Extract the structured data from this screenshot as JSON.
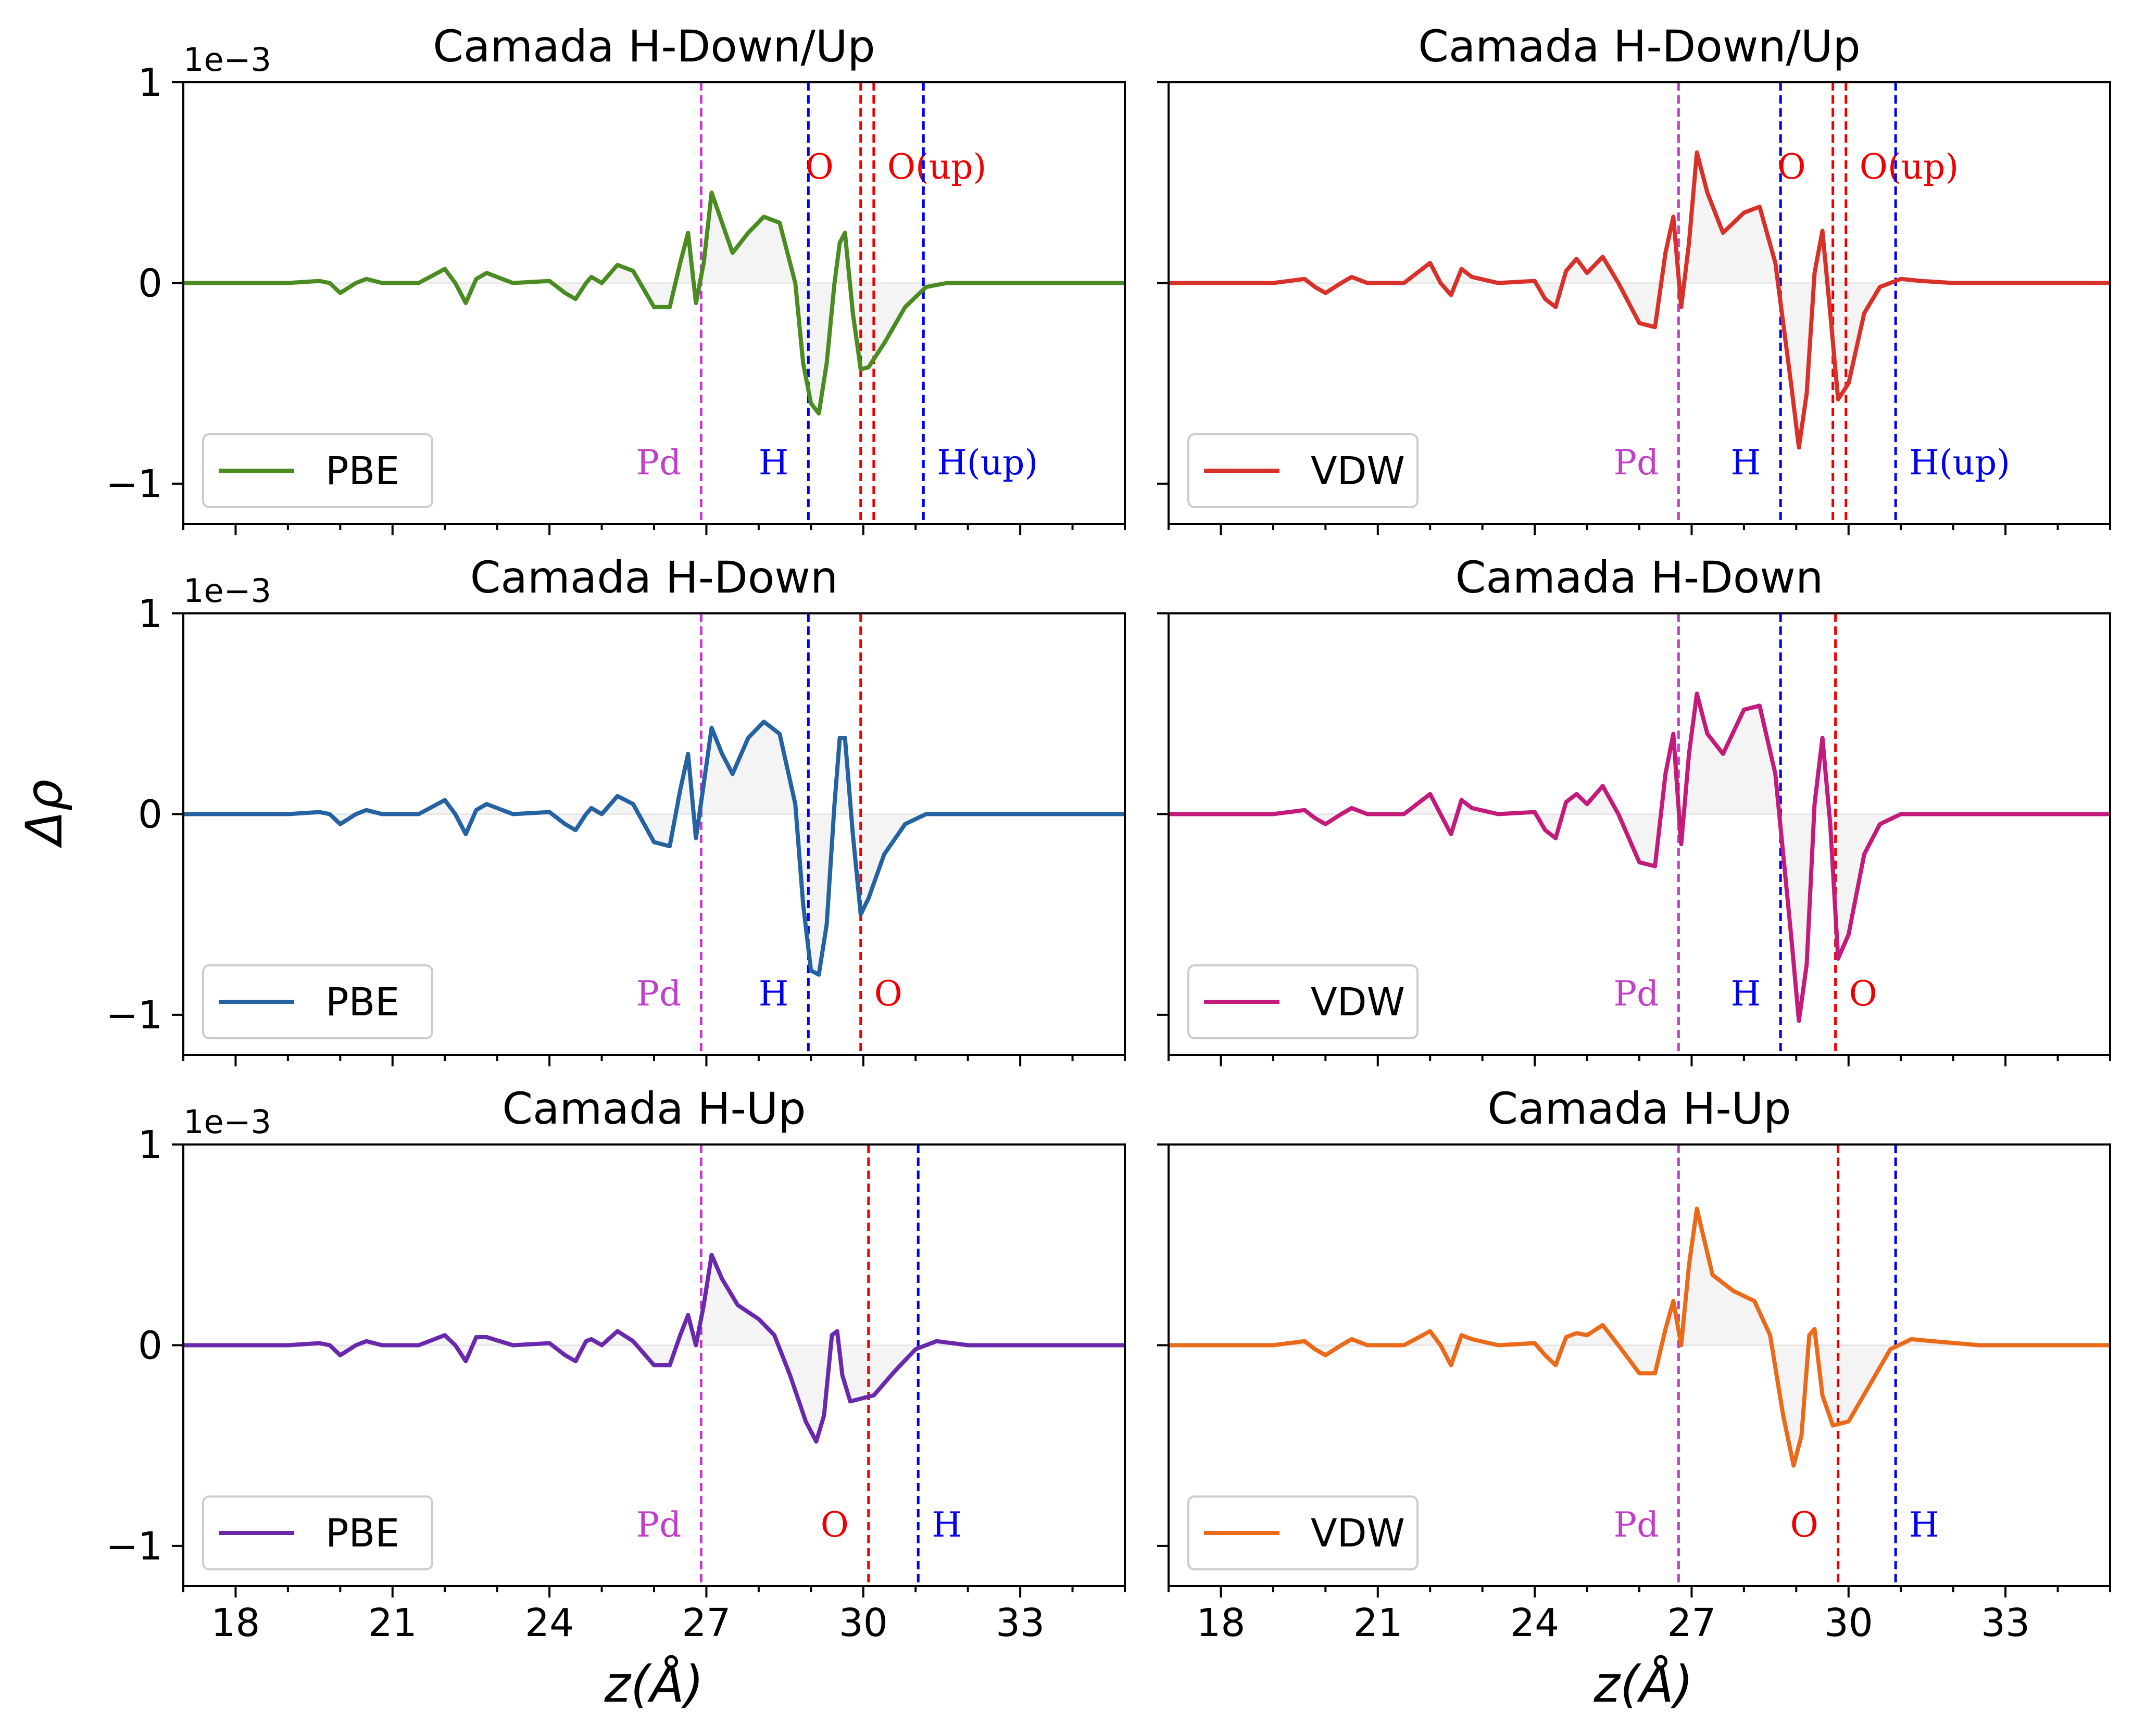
{
  "figure": {
    "ylabel": "Δρ",
    "xlabel": "z(Å)",
    "offset_label": "1e−3"
  },
  "colors": {
    "pbe_green": "#4a8c21",
    "vdw_red": "#d8312a",
    "pbe_blue": "#2462a1",
    "vdw_magenta": "#c31b7b",
    "pbe_purple": "#6a29ad",
    "vdw_orange": "#ea6a1a",
    "pd_line": "#c03ec8",
    "h_line": "#0000ee",
    "o_line": "#ee0000"
  },
  "chart_data": [
    {
      "type": "line",
      "panel": "top-left",
      "title": "Camada H-Down/Up",
      "xlim": [
        17,
        35
      ],
      "ylim": [
        -1.2,
        1.0
      ],
      "y_multiplier": "1e−3",
      "xticks": [
        18,
        21,
        24,
        27,
        30,
        33
      ],
      "yticks": [
        -1,
        0,
        1
      ],
      "legend": {
        "label": "PBE",
        "placement": "lower-left"
      },
      "series": [
        {
          "name": "PBE",
          "color": "#4a8c21",
          "x": [
            17,
            19,
            19.6,
            19.8,
            20,
            20.3,
            20.5,
            20.8,
            21.5,
            22,
            22.2,
            22.4,
            22.6,
            22.8,
            23.3,
            24,
            24.3,
            24.5,
            24.7,
            24.8,
            25,
            25.3,
            25.6,
            26,
            26.3,
            26.5,
            26.65,
            26.8,
            26.95,
            27.1,
            27.3,
            27.5,
            27.8,
            28.1,
            28.4,
            28.7,
            28.85,
            29,
            29.15,
            29.3,
            29.45,
            29.55,
            29.65,
            29.8,
            29.95,
            30.1,
            30.4,
            30.8,
            31.2,
            31.6,
            32.5,
            35
          ],
          "y": [
            0,
            0,
            0.01,
            0,
            -0.05,
            0,
            0.02,
            0,
            0,
            0.07,
            0,
            -0.1,
            0.02,
            0.05,
            0,
            0.01,
            -0.05,
            -0.08,
            0,
            0.03,
            0,
            0.09,
            0.06,
            -0.12,
            -0.12,
            0.1,
            0.25,
            -0.1,
            0.1,
            0.45,
            0.3,
            0.15,
            0.25,
            0.33,
            0.3,
            0,
            -0.4,
            -0.6,
            -0.65,
            -0.4,
            0,
            0.2,
            0.25,
            -0.15,
            -0.43,
            -0.42,
            -0.3,
            -0.12,
            -0.02,
            0,
            0,
            0
          ]
        }
      ],
      "vlines": [
        {
          "x": 26.9,
          "label": "Pd",
          "color": "#c03ec8"
        },
        {
          "x": 28.95,
          "label": "H",
          "color": "#0000ee"
        },
        {
          "x": 29.95,
          "label": "O",
          "color": "#ee0000"
        },
        {
          "x": 30.2,
          "label": "O(up)",
          "color": "#ee0000"
        },
        {
          "x": 31.15,
          "label": "H(up)",
          "color": "#0000ee"
        }
      ]
    },
    {
      "type": "line",
      "panel": "top-right",
      "title": "Camada H-Down/Up",
      "xlim": [
        17,
        35
      ],
      "ylim": [
        -1.2,
        1.0
      ],
      "xticks": [
        18,
        21,
        24,
        27,
        30,
        33
      ],
      "yticks": [
        -1,
        0,
        1
      ],
      "legend": {
        "label": "VDW",
        "placement": "lower-left"
      },
      "series": [
        {
          "name": "VDW",
          "color": "#d8312a",
          "x": [
            17,
            19,
            19.6,
            19.8,
            20,
            20.3,
            20.5,
            20.8,
            21.5,
            22,
            22.2,
            22.4,
            22.6,
            22.8,
            23.3,
            24,
            24.2,
            24.4,
            24.6,
            24.8,
            25,
            25.3,
            25.6,
            26,
            26.3,
            26.5,
            26.65,
            26.8,
            26.95,
            27.1,
            27.3,
            27.6,
            28,
            28.3,
            28.6,
            28.9,
            29.05,
            29.2,
            29.35,
            29.5,
            29.65,
            29.8,
            30,
            30.3,
            30.6,
            31,
            31.4,
            32,
            35
          ],
          "y": [
            0,
            0,
            0.02,
            -0.02,
            -0.05,
            0,
            0.03,
            0,
            0,
            0.1,
            0,
            -0.06,
            0.07,
            0.03,
            0,
            0.01,
            -0.08,
            -0.12,
            0.06,
            0.12,
            0.05,
            0.13,
            0,
            -0.2,
            -0.22,
            0.15,
            0.33,
            -0.12,
            0.2,
            0.65,
            0.45,
            0.25,
            0.35,
            0.38,
            0.1,
            -0.5,
            -0.82,
            -0.55,
            0.05,
            0.26,
            -0.15,
            -0.58,
            -0.5,
            -0.15,
            -0.02,
            0.02,
            0.01,
            0,
            0
          ]
        }
      ],
      "vlines": [
        {
          "x": 26.75,
          "label": "Pd",
          "color": "#c03ec8"
        },
        {
          "x": 28.7,
          "label": "H",
          "color": "#0000ee"
        },
        {
          "x": 29.7,
          "label": "O",
          "color": "#ee0000"
        },
        {
          "x": 29.95,
          "label": "O(up)",
          "color": "#ee0000"
        },
        {
          "x": 30.9,
          "label": "H(up)",
          "color": "#0000ee"
        }
      ]
    },
    {
      "type": "line",
      "panel": "middle-left",
      "title": "Camada H-Down",
      "xlim": [
        17,
        35
      ],
      "ylim": [
        -1.2,
        1.0
      ],
      "y_multiplier": "1e−3",
      "xticks": [
        18,
        21,
        24,
        27,
        30,
        33
      ],
      "yticks": [
        -1,
        0,
        1
      ],
      "legend": {
        "label": "PBE",
        "placement": "lower-left"
      },
      "series": [
        {
          "name": "PBE",
          "color": "#2462a1",
          "x": [
            17,
            19,
            19.6,
            19.8,
            20,
            20.3,
            20.5,
            20.8,
            21.5,
            22,
            22.2,
            22.4,
            22.6,
            22.8,
            23.3,
            24,
            24.3,
            24.5,
            24.7,
            24.8,
            25,
            25.3,
            25.6,
            26,
            26.3,
            26.5,
            26.65,
            26.8,
            26.95,
            27.1,
            27.3,
            27.5,
            27.8,
            28.1,
            28.4,
            28.7,
            28.85,
            29,
            29.15,
            29.3,
            29.45,
            29.55,
            29.65,
            29.8,
            29.95,
            30.1,
            30.4,
            30.8,
            31.2,
            31.6,
            32.5,
            35
          ],
          "y": [
            0,
            0,
            0.01,
            0,
            -0.05,
            0,
            0.02,
            0,
            0,
            0.07,
            0,
            -0.1,
            0.02,
            0.05,
            0,
            0.01,
            -0.05,
            -0.08,
            0,
            0.03,
            0,
            0.09,
            0.05,
            -0.14,
            -0.16,
            0.12,
            0.3,
            -0.12,
            0.15,
            0.43,
            0.3,
            0.2,
            0.38,
            0.46,
            0.4,
            0.05,
            -0.45,
            -0.78,
            -0.8,
            -0.55,
            0.05,
            0.38,
            0.38,
            -0.1,
            -0.5,
            -0.42,
            -0.2,
            -0.05,
            0,
            0,
            0,
            0
          ]
        }
      ],
      "vlines": [
        {
          "x": 26.9,
          "label": "Pd",
          "color": "#c03ec8"
        },
        {
          "x": 28.95,
          "label": "H",
          "color": "#0000ee"
        },
        {
          "x": 29.95,
          "label": "O",
          "color": "#ee0000"
        }
      ]
    },
    {
      "type": "line",
      "panel": "middle-right",
      "title": "Camada H-Down",
      "xlim": [
        17,
        35
      ],
      "ylim": [
        -1.2,
        1.0
      ],
      "xticks": [
        18,
        21,
        24,
        27,
        30,
        33
      ],
      "yticks": [
        -1,
        0,
        1
      ],
      "legend": {
        "label": "VDW",
        "placement": "lower-left"
      },
      "series": [
        {
          "name": "VDW",
          "color": "#c31b7b",
          "x": [
            17,
            19,
            19.6,
            19.8,
            20,
            20.3,
            20.5,
            20.8,
            21.5,
            22,
            22.2,
            22.4,
            22.6,
            22.8,
            23.3,
            24,
            24.2,
            24.4,
            24.6,
            24.8,
            25,
            25.3,
            25.6,
            26,
            26.3,
            26.5,
            26.65,
            26.8,
            26.95,
            27.1,
            27.3,
            27.6,
            28,
            28.3,
            28.6,
            28.9,
            29.05,
            29.2,
            29.35,
            29.5,
            29.65,
            29.8,
            30,
            30.3,
            30.6,
            31,
            31.4,
            32,
            35
          ],
          "y": [
            0,
            0,
            0.02,
            -0.02,
            -0.05,
            0,
            0.03,
            0,
            0,
            0.1,
            0,
            -0.1,
            0.07,
            0.03,
            0,
            0.01,
            -0.08,
            -0.12,
            0.06,
            0.1,
            0.05,
            0.14,
            0,
            -0.24,
            -0.26,
            0.2,
            0.4,
            -0.15,
            0.3,
            0.6,
            0.4,
            0.3,
            0.52,
            0.54,
            0.2,
            -0.6,
            -1.03,
            -0.75,
            0.05,
            0.38,
            -0.05,
            -0.72,
            -0.6,
            -0.2,
            -0.05,
            0,
            0,
            0,
            0
          ]
        }
      ],
      "vlines": [
        {
          "x": 26.75,
          "label": "Pd",
          "color": "#c03ec8"
        },
        {
          "x": 28.7,
          "label": "H",
          "color": "#0000ee"
        },
        {
          "x": 29.75,
          "label": "O",
          "color": "#ee0000"
        }
      ]
    },
    {
      "type": "line",
      "panel": "bottom-left",
      "title": "Camada H-Up",
      "xlim": [
        17,
        35
      ],
      "ylim": [
        -1.2,
        1.0
      ],
      "y_multiplier": "1e−3",
      "xticks": [
        18,
        21,
        24,
        27,
        30,
        33
      ],
      "yticks": [
        -1,
        0,
        1
      ],
      "legend": {
        "label": "PBE",
        "placement": "lower-left"
      },
      "series": [
        {
          "name": "PBE",
          "color": "#6a29ad",
          "x": [
            17,
            19,
            19.6,
            19.8,
            20,
            20.3,
            20.5,
            20.8,
            21.5,
            22,
            22.2,
            22.4,
            22.6,
            22.8,
            23.3,
            24,
            24.3,
            24.5,
            24.7,
            24.8,
            25,
            25.3,
            25.6,
            26,
            26.3,
            26.5,
            26.65,
            26.8,
            26.95,
            27.1,
            27.3,
            27.6,
            28,
            28.3,
            28.6,
            28.9,
            29.1,
            29.25,
            29.4,
            29.5,
            29.6,
            29.75,
            29.9,
            30.2,
            30.6,
            31,
            31.4,
            32,
            35
          ],
          "y": [
            0,
            0,
            0.01,
            0,
            -0.05,
            0,
            0.02,
            0,
            0,
            0.05,
            0,
            -0.08,
            0.04,
            0.04,
            0,
            0.01,
            -0.05,
            -0.08,
            0.02,
            0.03,
            0,
            0.07,
            0.02,
            -0.1,
            -0.1,
            0.05,
            0.15,
            0,
            0.2,
            0.45,
            0.33,
            0.2,
            0.13,
            0.05,
            -0.15,
            -0.38,
            -0.48,
            -0.35,
            0.05,
            0.07,
            -0.15,
            -0.28,
            -0.27,
            -0.25,
            -0.13,
            -0.02,
            0.02,
            0,
            0
          ]
        }
      ],
      "vlines": [
        {
          "x": 26.9,
          "label": "Pd",
          "color": "#c03ec8"
        },
        {
          "x": 30.1,
          "label": "O",
          "color": "#ee0000"
        },
        {
          "x": 31.05,
          "label": "H",
          "color": "#0000ee"
        }
      ]
    },
    {
      "type": "line",
      "panel": "bottom-right",
      "title": "Camada H-Up",
      "xlim": [
        17,
        35
      ],
      "ylim": [
        -1.2,
        1.0
      ],
      "xticks": [
        18,
        21,
        24,
        27,
        30,
        33
      ],
      "yticks": [
        -1,
        0,
        1
      ],
      "legend": {
        "label": "VDW",
        "placement": "lower-left"
      },
      "series": [
        {
          "name": "VDW",
          "color": "#ea6a1a",
          "x": [
            17,
            19,
            19.6,
            19.8,
            20,
            20.3,
            20.5,
            20.8,
            21.5,
            22,
            22.2,
            22.4,
            22.6,
            22.8,
            23.3,
            24,
            24.2,
            24.4,
            24.6,
            24.8,
            25,
            25.3,
            25.6,
            26,
            26.3,
            26.5,
            26.65,
            26.8,
            26.95,
            27.1,
            27.4,
            27.8,
            28.2,
            28.5,
            28.75,
            28.95,
            29.1,
            29.25,
            29.35,
            29.5,
            29.7,
            30,
            30.4,
            30.8,
            31.2,
            31.6,
            32.5,
            35
          ],
          "y": [
            0,
            0,
            0.02,
            -0.02,
            -0.05,
            0,
            0.03,
            0,
            0,
            0.07,
            0,
            -0.1,
            0.05,
            0.03,
            0,
            0.01,
            -0.05,
            -0.1,
            0.04,
            0.06,
            0.05,
            0.1,
            0,
            -0.14,
            -0.14,
            0.08,
            0.22,
            0,
            0.4,
            0.68,
            0.35,
            0.27,
            0.22,
            0.05,
            -0.35,
            -0.6,
            -0.45,
            0.05,
            0.08,
            -0.25,
            -0.4,
            -0.38,
            -0.2,
            -0.02,
            0.03,
            0.02,
            0,
            0
          ]
        }
      ],
      "vlines": [
        {
          "x": 26.75,
          "label": "Pd",
          "color": "#c03ec8"
        },
        {
          "x": 29.8,
          "label": "O",
          "color": "#ee0000"
        },
        {
          "x": 30.9,
          "label": "H",
          "color": "#0000ee"
        }
      ]
    }
  ]
}
